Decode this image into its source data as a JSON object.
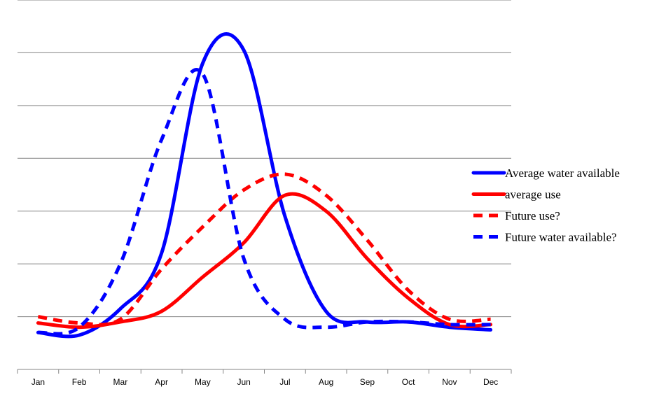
{
  "chart_data": {
    "type": "line",
    "title": "",
    "xlabel": "",
    "ylabel": "",
    "x": [
      "Jan",
      "Feb",
      "Mar",
      "Apr",
      "May",
      "Jun",
      "Jul",
      "Aug",
      "Sep",
      "Oct",
      "Nov",
      "Dec"
    ],
    "ylim": [
      0,
      7
    ],
    "y_gridlines": [
      0,
      1,
      2,
      3,
      4,
      5,
      6,
      7
    ],
    "y_tick_labels_shown": false,
    "grid": true,
    "legend_position": "right",
    "series": [
      {
        "name": "Average water available",
        "color": "#0000FF",
        "style": "solid",
        "values": [
          0.7,
          0.65,
          1.15,
          2.2,
          5.8,
          6.05,
          2.9,
          1.1,
          0.9,
          0.9,
          0.8,
          0.75
        ]
      },
      {
        "name": "average use",
        "color": "#FF0000",
        "style": "solid",
        "values": [
          0.88,
          0.8,
          0.9,
          1.1,
          1.75,
          2.4,
          3.3,
          3.0,
          2.1,
          1.35,
          0.85,
          0.85
        ]
      },
      {
        "name": "Future use?",
        "color": "#FF0000",
        "style": "dashed",
        "values": [
          1.0,
          0.88,
          0.95,
          1.9,
          2.7,
          3.4,
          3.7,
          3.3,
          2.45,
          1.5,
          0.95,
          0.95
        ]
      },
      {
        "name": "Future water available?",
        "color": "#0000FF",
        "style": "dashed",
        "values": [
          0.7,
          0.8,
          2.0,
          4.35,
          5.6,
          2.1,
          0.95,
          0.8,
          0.9,
          0.9,
          0.85,
          0.85
        ]
      }
    ]
  }
}
